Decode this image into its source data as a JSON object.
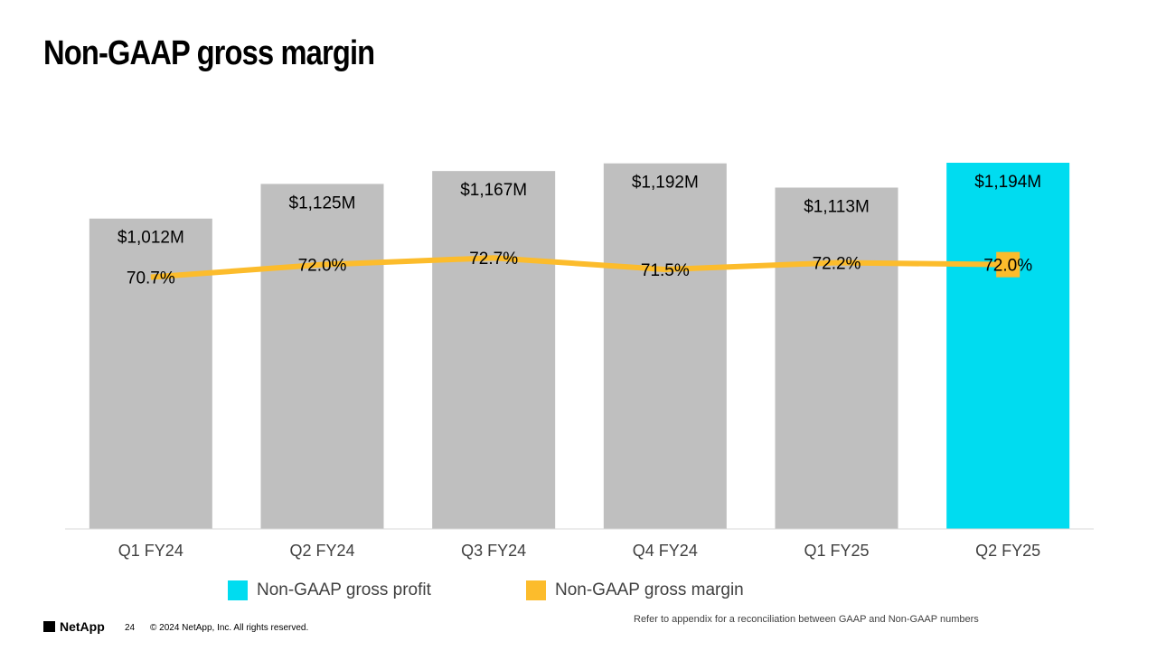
{
  "title": "Non-GAAP gross margin",
  "chart_data": {
    "type": "bar",
    "categories": [
      "Q1 FY24",
      "Q2 FY24",
      "Q3 FY24",
      "Q4 FY24",
      "Q1 FY25",
      "Q2 FY25"
    ],
    "series": [
      {
        "name": "Non-GAAP gross profit",
        "kind": "bar",
        "values": [
          1012,
          1125,
          1167,
          1192,
          1113,
          1194
        ],
        "labels": [
          "$1,012M",
          "$1,125M",
          "$1,167M",
          "$1,192M",
          "$1,113M",
          "$1,194M"
        ],
        "unit": "$M"
      },
      {
        "name": "Non-GAAP gross margin",
        "kind": "line",
        "values": [
          70.7,
          72.0,
          72.7,
          71.5,
          72.2,
          72.0
        ],
        "labels": [
          "70.7%",
          "72.0%",
          "72.7%",
          "71.5%",
          "72.2%",
          "72.0%"
        ],
        "unit": "%"
      }
    ],
    "highlight_index": 5,
    "ylim": [
      0,
      1194
    ],
    "margin_ylim": [
      0,
      100
    ],
    "xlabel": "",
    "ylabel": "",
    "grid": false,
    "legend_position": "bottom"
  },
  "colors": {
    "bar_default": "#bfbfbf",
    "bar_highlight": "#00dcf0",
    "line": "#fcbc2c",
    "axis": "#d9d9d9",
    "tick_text": "#404040"
  },
  "legend": {
    "profit_label": "Non-GAAP gross profit",
    "margin_label": "Non-GAAP gross margin"
  },
  "footer": {
    "brand": "NetApp",
    "page": "24",
    "copyright": "© 2024 NetApp, Inc. All rights reserved.",
    "note": "Refer to appendix for a reconciliation between GAAP and Non-GAAP numbers"
  }
}
